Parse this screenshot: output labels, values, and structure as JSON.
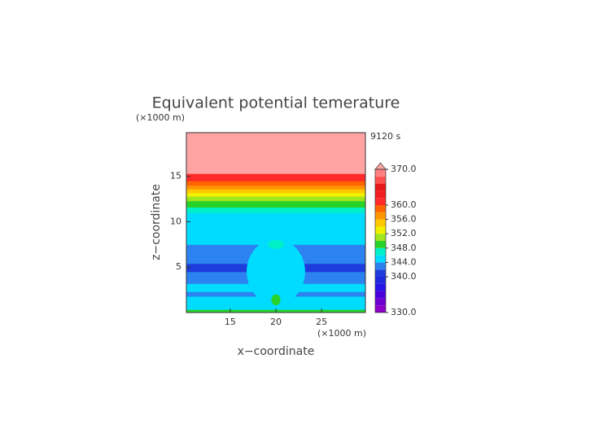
{
  "chart_data": {
    "type": "contour",
    "title": "Equivalent potential temerature",
    "y_unit": "(×1000 m)",
    "x_unit": "(×1000 m)",
    "time_label": "9120 s",
    "xlabel": "x−coordinate",
    "ylabel": "z−coordinate",
    "xlim": [
      10.2,
      29.8
    ],
    "ylim": [
      0,
      19.8
    ],
    "xticks": [
      15,
      20,
      25
    ],
    "yticks": [
      5,
      10,
      15
    ],
    "layers": [
      {
        "z0": 0,
        "z1": 0.35,
        "value": 349
      },
      {
        "z0": 0.35,
        "z1": 1.8,
        "value": 345
      },
      {
        "z0": 1.8,
        "z1": 2.3,
        "value": 343
      },
      {
        "z0": 2.3,
        "z1": 3.2,
        "value": 344
      },
      {
        "z0": 3.2,
        "z1": 3.8,
        "value": 342
      },
      {
        "z0": 3.8,
        "z1": 4.5,
        "value": 343
      },
      {
        "z0": 4.5,
        "z1": 5.4,
        "value": 341
      },
      {
        "z0": 5.4,
        "z1": 7.5,
        "value": 343
      },
      {
        "z0": 7.5,
        "z1": 11,
        "value": 345
      },
      {
        "z0": 11,
        "z1": 11.6,
        "value": 347
      },
      {
        "z0": 11.6,
        "z1": 12.3,
        "value": 349
      },
      {
        "z0": 12.3,
        "z1": 12.8,
        "value": 351
      },
      {
        "z0": 12.8,
        "z1": 13.2,
        "value": 353
      },
      {
        "z0": 13.2,
        "z1": 13.6,
        "value": 355
      },
      {
        "z0": 13.6,
        "z1": 14,
        "value": 357
      },
      {
        "z0": 14,
        "z1": 14.5,
        "value": 359
      },
      {
        "z0": 14.5,
        "z1": 15.3,
        "value": 361
      },
      {
        "z0": 15.3,
        "z1": 19.8,
        "value": 371
      }
    ],
    "patches": [
      {
        "cx": 20,
        "cz": 4.5,
        "rx": 3.2,
        "rz": 3.6,
        "value": 345
      },
      {
        "cx": 20,
        "cz": 7.5,
        "rx": 0.9,
        "rz": 0.5,
        "value": 347
      },
      {
        "cx": 20,
        "cz": 1.4,
        "rx": 0.5,
        "rz": 0.6,
        "value": 349
      }
    ],
    "colorbar": {
      "levels": [
        330,
        332,
        334,
        336,
        338,
        340,
        342,
        344,
        346,
        348,
        350,
        352,
        354,
        356,
        358,
        360,
        362,
        364,
        366,
        368,
        370
      ],
      "colors": [
        "#8c00c8",
        "#6e00d2",
        "#4b00dc",
        "#2814e6",
        "#1e28dc",
        "#1e3cdc",
        "#2c82f0",
        "#00dcff",
        "#00f0c8",
        "#28d228",
        "#a0e61e",
        "#f0f000",
        "#ffc800",
        "#ff9600",
        "#ff6400",
        "#ff2a2a",
        "#f01e1e",
        "#e61818",
        "#ff5050",
        "#ff8080"
      ],
      "extend_color": "#ffa3a3",
      "ticks": [
        {
          "value": 330,
          "label": "330.0"
        },
        {
          "value": 340,
          "label": "340.0"
        },
        {
          "value": 344,
          "label": "344.0"
        },
        {
          "value": 348,
          "label": "348.0"
        },
        {
          "value": 352,
          "label": "352.0"
        },
        {
          "value": 356,
          "label": "356.0"
        },
        {
          "value": 360,
          "label": "360.0"
        },
        {
          "value": 370,
          "label": "370.0"
        }
      ]
    }
  }
}
